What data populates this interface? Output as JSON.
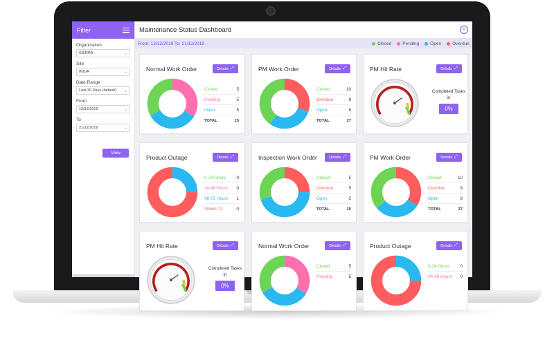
{
  "colors": {
    "closed": "#6dd456",
    "pending": "#ff6fae",
    "open": "#2ab8f0",
    "overdue": "#ff5d5d",
    "accent": "#8e63f0"
  },
  "sidebar": {
    "title": "Filter",
    "fields": [
      {
        "label": "Organization",
        "value": "SIERRA"
      },
      {
        "label": "Site",
        "value": "INDIA"
      },
      {
        "label": "Date Range",
        "value": "Last 30 Days (default)"
      },
      {
        "label": "From",
        "value": "13/12/2019"
      },
      {
        "label": "To",
        "value": "21/12/2019"
      }
    ],
    "view_label": "View"
  },
  "header": {
    "title": "Maintenance Status Dashboard",
    "close_icon": "close-icon",
    "date_range": "From: 13/12/2019  To: 21/12/2019"
  },
  "legend": [
    {
      "label": "Closed",
      "color": "#6dd456"
    },
    {
      "label": "Pending",
      "color": "#ff6fae"
    },
    {
      "label": "Open",
      "color": "#2ab8f0"
    },
    {
      "label": "Overdue",
      "color": "#ff5d5d"
    }
  ],
  "cards": [
    {
      "title": "Normal Work Order",
      "details": "Details",
      "type": "donut",
      "rows": [
        {
          "label": "Closed",
          "value": "5",
          "color": "#6dd456"
        },
        {
          "label": "Pending",
          "value": "5",
          "color": "#ff6fae"
        },
        {
          "label": "Open",
          "value": "5",
          "color": "#2ab8f0"
        },
        {
          "label": "TOTAL",
          "value": "15",
          "color": "#333333"
        }
      ]
    },
    {
      "title": "PM Work Order",
      "details": "Details",
      "type": "donut",
      "rows": [
        {
          "label": "Closed",
          "value": "10",
          "color": "#6dd456"
        },
        {
          "label": "Overdue",
          "value": "9",
          "color": "#ff5d5d"
        },
        {
          "label": "Open",
          "value": "8",
          "color": "#2ab8f0"
        },
        {
          "label": "TOTAL",
          "value": "27",
          "color": "#333333"
        }
      ]
    },
    {
      "title": "PM Hit Rate",
      "details": "Details",
      "type": "gauge",
      "completed_label": "Completed Tasks in",
      "percent": "0%"
    },
    {
      "title": "Product Outage",
      "details": "Details",
      "type": "donut",
      "rows": [
        {
          "label": "0-24 Hours",
          "value": "0",
          "color": "#6dd456"
        },
        {
          "label": "24-48 Hours",
          "value": "0",
          "color": "#ff6fae"
        },
        {
          "label": "48-72 Hours",
          "value": "1",
          "color": "#2ab8f0"
        },
        {
          "label": "Above 72",
          "value": "0",
          "color": "#ff5d5d"
        }
      ]
    },
    {
      "title": "Inspection Work Order",
      "details": "Details",
      "type": "donut",
      "rows": [
        {
          "label": "Closed",
          "value": "5",
          "color": "#6dd456"
        },
        {
          "label": "Overdue",
          "value": "5",
          "color": "#ff5d5d"
        },
        {
          "label": "Open",
          "value": "5",
          "color": "#2ab8f0"
        },
        {
          "label": "TOTAL",
          "value": "15",
          "color": "#333333"
        }
      ]
    },
    {
      "title": "PM Work Order",
      "details": "Details",
      "type": "donut",
      "rows": [
        {
          "label": "Closed",
          "value": "10",
          "color": "#6dd456"
        },
        {
          "label": "Overdue",
          "value": "9",
          "color": "#ff5d5d"
        },
        {
          "label": "Open",
          "value": "8",
          "color": "#2ab8f0"
        },
        {
          "label": "TOTAL",
          "value": "27",
          "color": "#333333"
        }
      ]
    },
    {
      "title": "PM Hit Rate",
      "details": "Details",
      "type": "gauge",
      "completed_label": "Completed Tasks in",
      "percent": "0%"
    },
    {
      "title": "Normal Work Order",
      "details": "Details",
      "type": "donut",
      "rows": [
        {
          "label": "Closed",
          "value": "5",
          "color": "#6dd456"
        },
        {
          "label": "Pending",
          "value": "5",
          "color": "#ff6fae"
        }
      ]
    },
    {
      "title": "Product Outage",
      "details": "Details",
      "type": "donut",
      "rows": [
        {
          "label": "0-24 Hours",
          "value": "0",
          "color": "#6dd456"
        },
        {
          "label": "24-48 Hours",
          "value": "0",
          "color": "#ff6fae"
        }
      ]
    }
  ]
}
